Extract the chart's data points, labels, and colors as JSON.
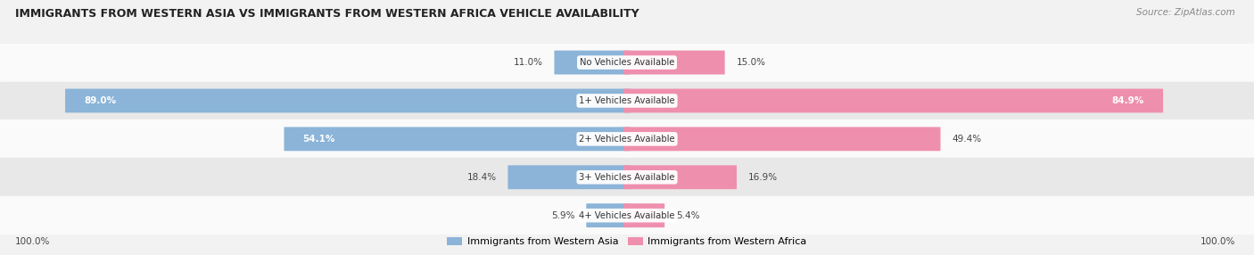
{
  "title": "IMMIGRANTS FROM WESTERN ASIA VS IMMIGRANTS FROM WESTERN AFRICA VEHICLE AVAILABILITY",
  "source": "Source: ZipAtlas.com",
  "categories": [
    "No Vehicles Available",
    "1+ Vehicles Available",
    "2+ Vehicles Available",
    "3+ Vehicles Available",
    "4+ Vehicles Available"
  ],
  "western_asia": [
    11.0,
    89.0,
    54.1,
    18.4,
    5.9
  ],
  "western_africa": [
    15.0,
    84.9,
    49.4,
    16.9,
    5.4
  ],
  "color_asia": "#8bb4d8",
  "color_africa": "#ef8fae",
  "background_color": "#f2f2f2",
  "row_bg_light": "#fafafa",
  "row_bg_dark": "#e8e8e8",
  "bar_height": 0.62,
  "total_label": "100.0%",
  "legend_asia": "Immigrants from Western Asia",
  "legend_africa": "Immigrants from Western Africa"
}
